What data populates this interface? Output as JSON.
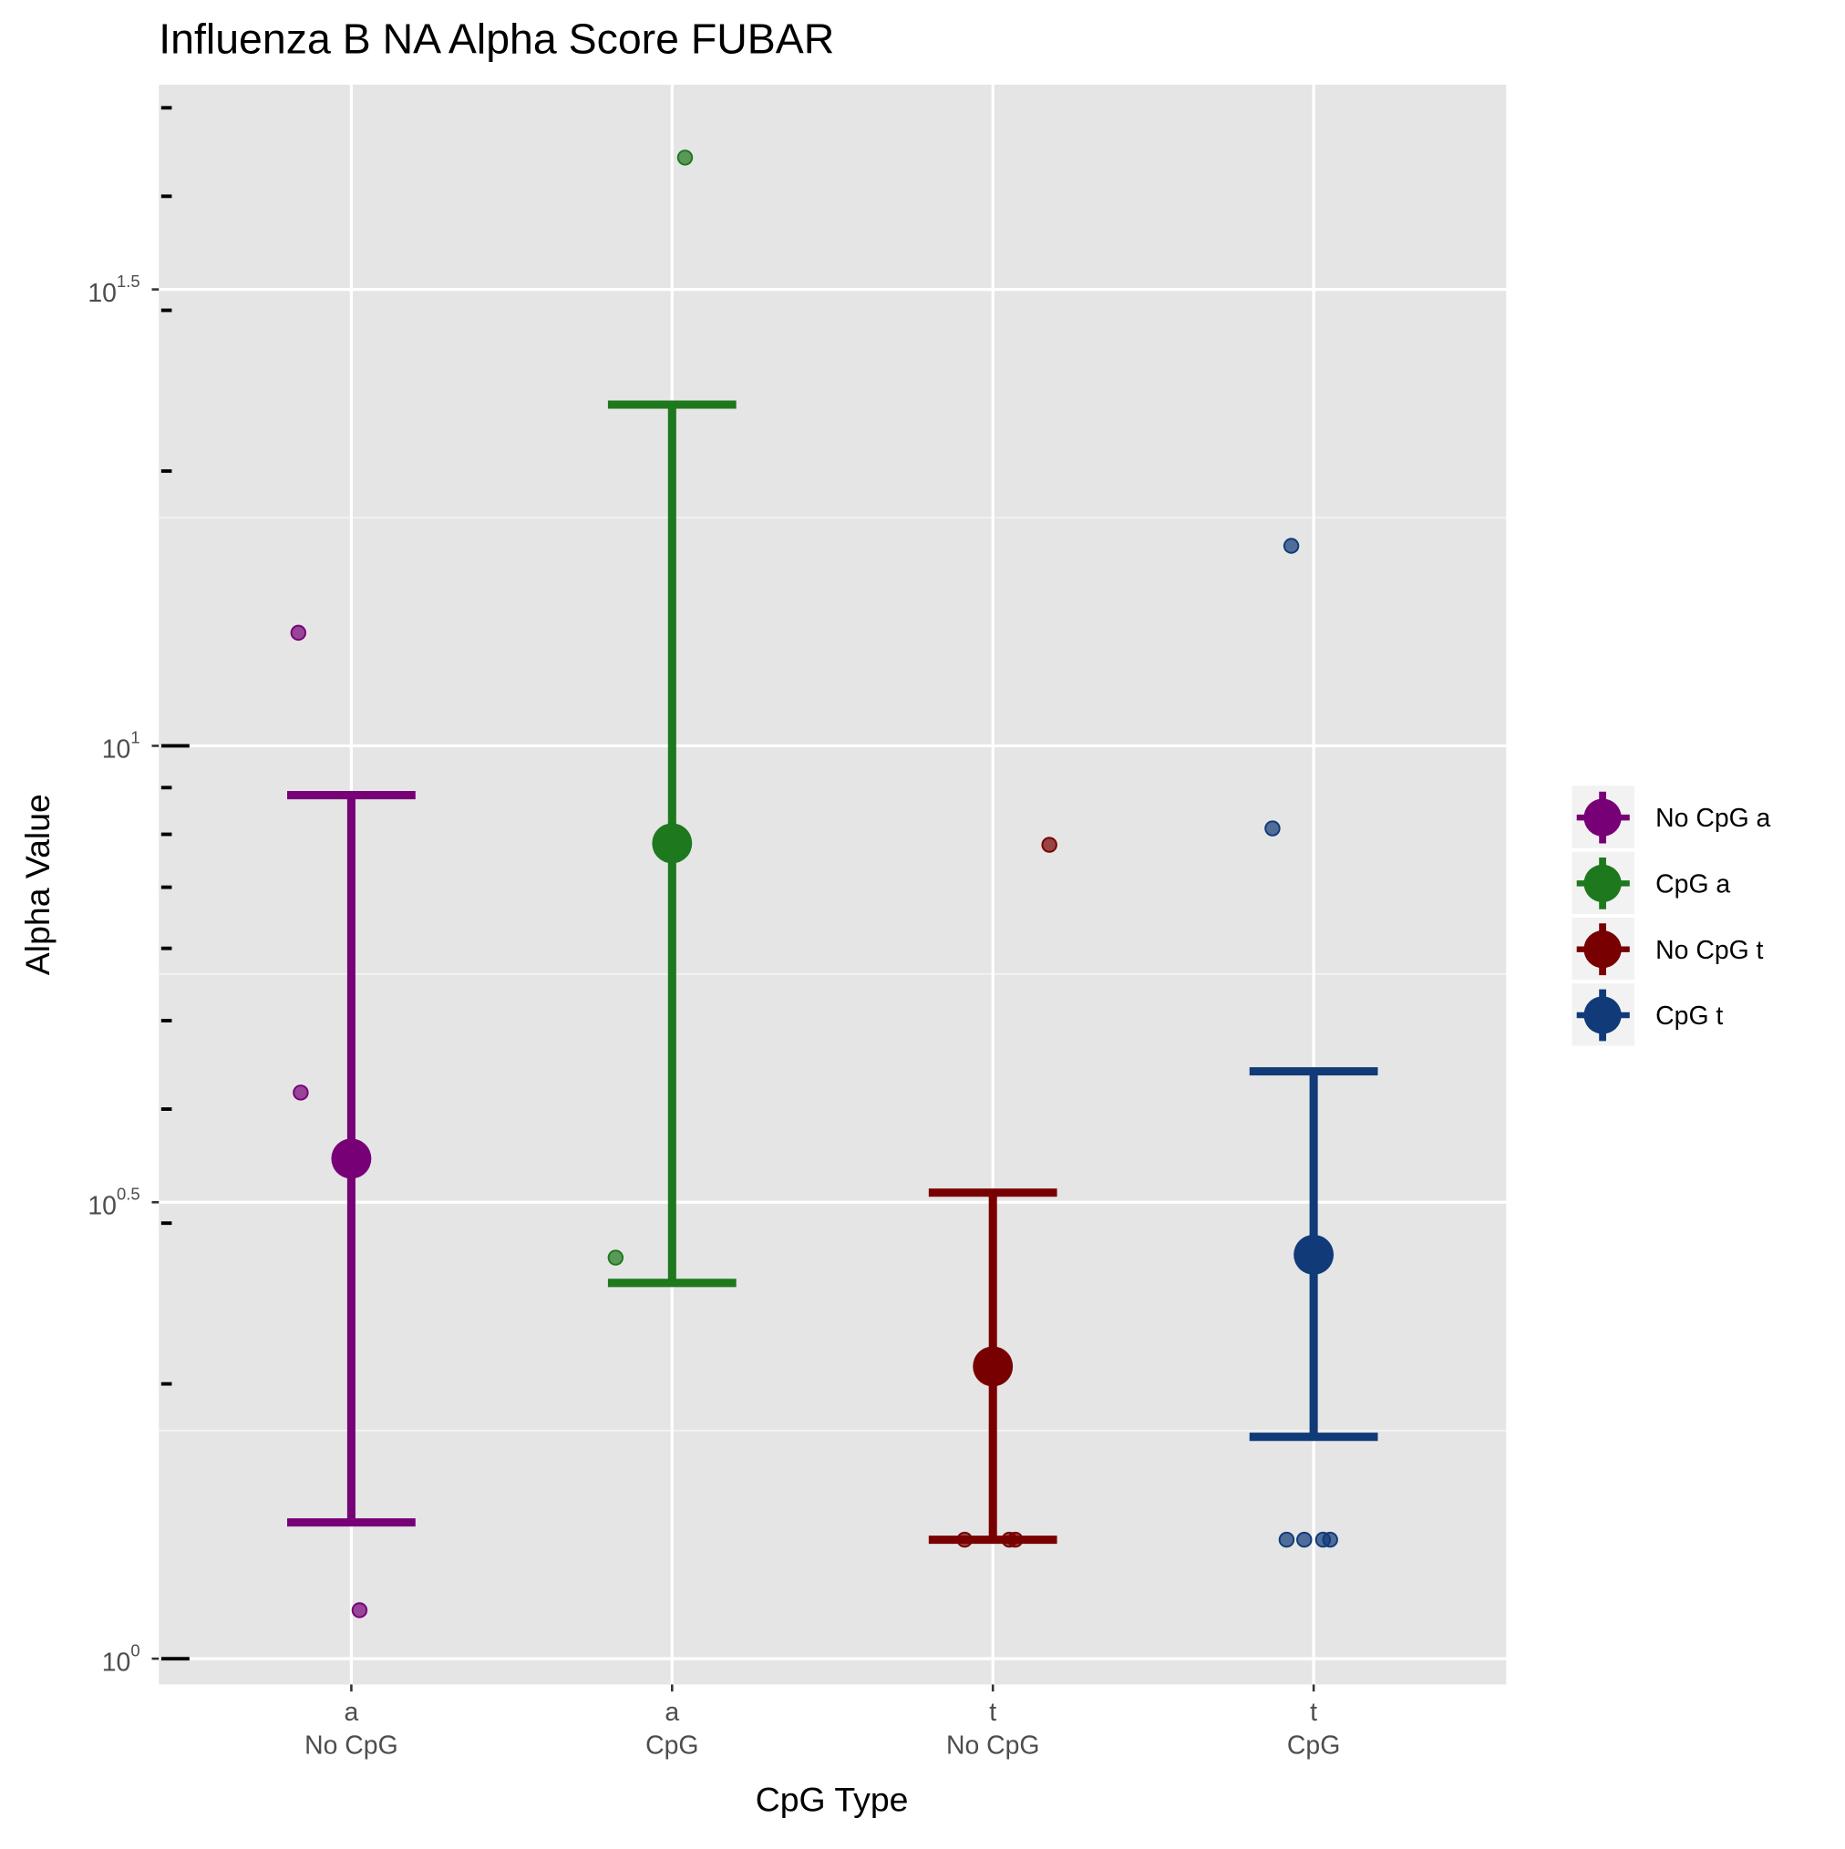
{
  "chart_data": {
    "type": "errorbar-jitter",
    "title": "Influenza B NA Alpha Score FUBAR",
    "x_label": "CpG Type",
    "y_label": "Alpha Value",
    "categories": [
      [
        "a",
        "No CpG"
      ],
      [
        "a",
        "CpG"
      ],
      [
        "t",
        "No CpG"
      ],
      [
        "t",
        "CpG"
      ]
    ],
    "log_scale_y": true,
    "grid": true,
    "ylim": [
      0.937,
      53.0
    ],
    "yticks": [
      {
        "value": 1,
        "label": "10^0"
      },
      {
        "value": 3.1623,
        "label": "10^0.5"
      },
      {
        "value": 10,
        "label": "10^1"
      },
      {
        "value": 31.623,
        "label": "10^1.5"
      }
    ],
    "logticks": [
      1,
      2,
      3,
      4,
      5,
      6,
      7,
      8,
      9,
      10,
      20,
      30,
      40,
      50
    ],
    "legend_position": "right",
    "series": [
      {
        "name": "No CpG a",
        "color": "#770077",
        "mean": 3.53,
        "lower": 1.41,
        "upper": 8.83,
        "points": [
          13.3,
          4.17,
          1.13
        ]
      },
      {
        "name": "CpG a",
        "color": "#1e781e",
        "mean": 7.82,
        "lower": 2.58,
        "upper": 23.65,
        "points": [
          44.1,
          2.75
        ]
      },
      {
        "name": "No CpG t",
        "color": "#780000",
        "mean": 2.09,
        "lower": 1.35,
        "upper": 3.24,
        "points": [
          1.35,
          1.35,
          1.35,
          7.79
        ]
      },
      {
        "name": "CpG t",
        "color": "#103a78",
        "mean": 2.77,
        "lower": 1.75,
        "upper": 4.4,
        "points": [
          16.56,
          8.12,
          1.35,
          1.35,
          1.35,
          1.35
        ]
      }
    ]
  }
}
